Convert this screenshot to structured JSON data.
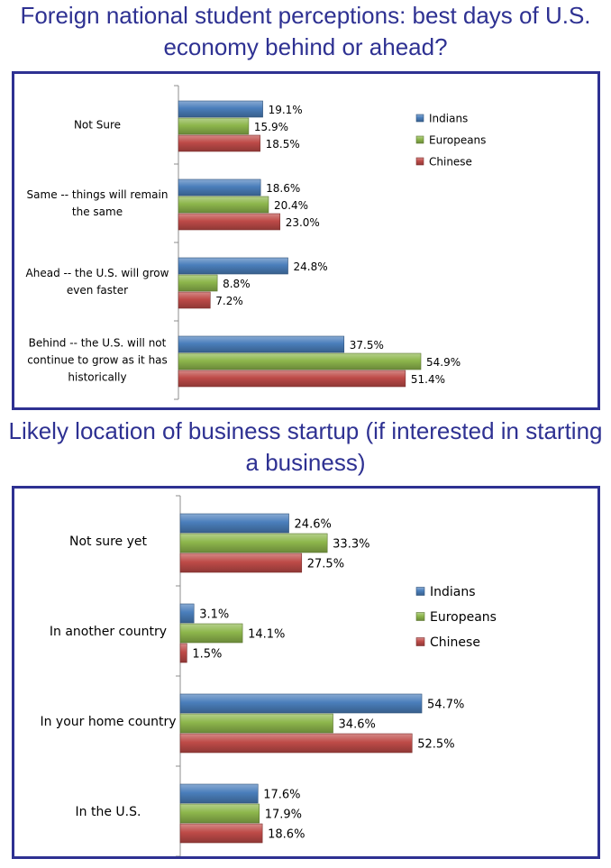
{
  "colors": {
    "title": "#2e3192",
    "border": "#2e3192",
    "Indians": "#4a7ebb",
    "Europeans": "#8db64c",
    "Chinese": "#be4b48"
  },
  "chart_data": [
    {
      "type": "bar",
      "orientation": "horizontal",
      "title": "Foreign national student perceptions: best days of U.S. economy behind or ahead?",
      "categories": [
        [
          "Not Sure"
        ],
        [
          "Same -- things will remain",
          "the same"
        ],
        [
          "Ahead -- the U.S. will grow",
          "even faster"
        ],
        [
          "Behind -- the U.S. will not",
          "continue to grow as it has",
          "historically"
        ]
      ],
      "series": [
        {
          "name": "Indians",
          "values": [
            19.1,
            18.6,
            24.8,
            37.5
          ],
          "labels": [
            "19.1%",
            "18.6%",
            "24.8%",
            "37.5%"
          ]
        },
        {
          "name": "Europeans",
          "values": [
            15.9,
            20.4,
            8.8,
            54.9
          ],
          "labels": [
            "15.9%",
            "20.4%",
            "8.8%",
            "54.9%"
          ]
        },
        {
          "name": "Chinese",
          "values": [
            18.5,
            23.0,
            7.2,
            51.4
          ],
          "labels": [
            "18.5%",
            "23.0%",
            "7.2%",
            "51.4%"
          ]
        }
      ],
      "xlim": [
        0,
        60
      ],
      "grid": false,
      "legend": "top-right"
    },
    {
      "type": "bar",
      "orientation": "horizontal",
      "title": "Likely location of business startup (if interested in starting a business)",
      "categories": [
        [
          "Not sure yet"
        ],
        [
          "In another country"
        ],
        [
          "In your home country"
        ],
        [
          "In the U.S."
        ]
      ],
      "series": [
        {
          "name": "Indians",
          "values": [
            24.6,
            3.1,
            54.7,
            17.6
          ],
          "labels": [
            "24.6%",
            "3.1%",
            "54.7%",
            "17.6%"
          ]
        },
        {
          "name": "Europeans",
          "values": [
            33.3,
            14.1,
            34.6,
            17.9
          ],
          "labels": [
            "33.3%",
            "14.1%",
            "34.6%",
            "17.9%"
          ]
        },
        {
          "name": "Chinese",
          "values": [
            27.5,
            1.5,
            52.5,
            18.6
          ],
          "labels": [
            "27.5%",
            "1.5%",
            "52.5%",
            "18.6%"
          ]
        }
      ],
      "xlim": [
        0,
        60
      ],
      "grid": false,
      "legend": "right"
    }
  ]
}
